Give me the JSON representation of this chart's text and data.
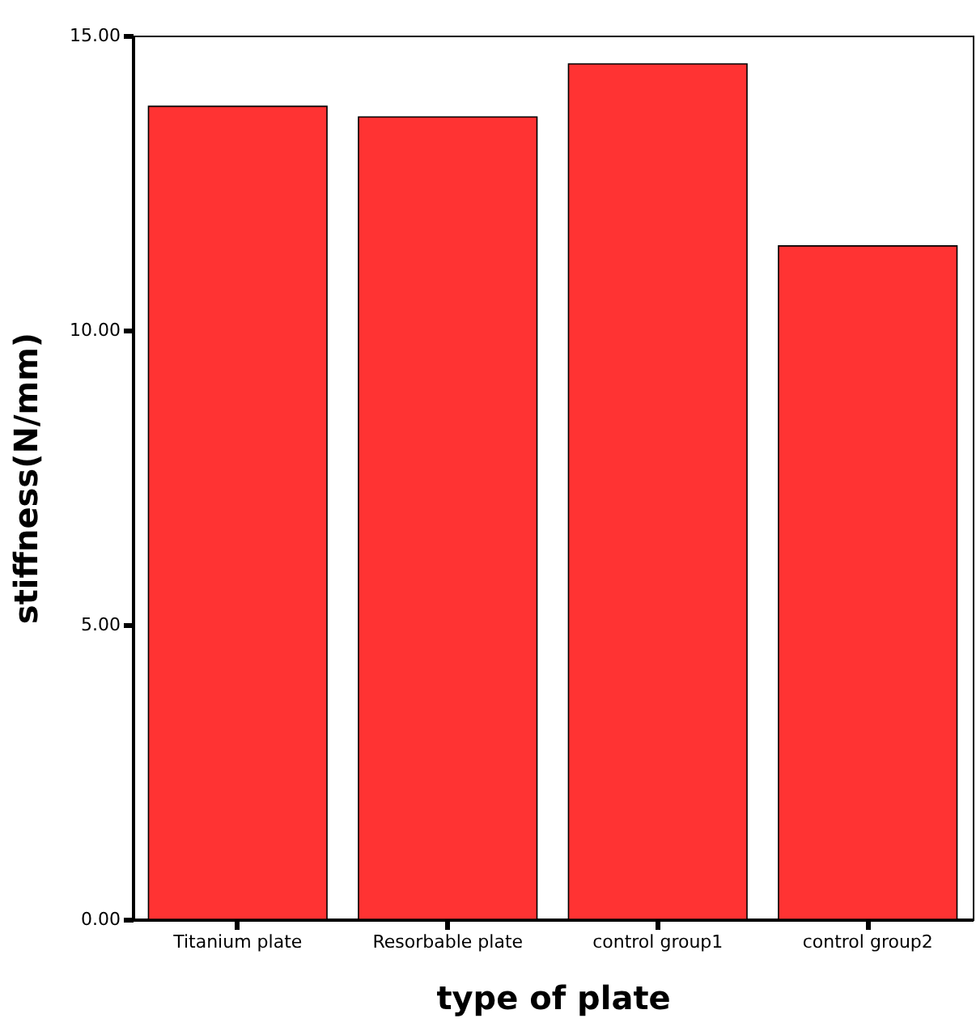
{
  "chart_data": {
    "type": "bar",
    "xlabel": "type of plate",
    "ylabel": "stiffness(N/mm)",
    "categories": [
      "Titanium plate",
      "Resorbable plate",
      "control group1",
      "control group2"
    ],
    "values": [
      13.8,
      13.62,
      14.52,
      11.43
    ],
    "color": "#ff3333",
    "ylim": [
      0,
      15
    ],
    "yticks": [
      {
        "value": 0,
        "label": "0.00"
      },
      {
        "value": 5,
        "label": "5.00"
      },
      {
        "value": 10,
        "label": "10.00"
      },
      {
        "value": 15,
        "label": "15.00"
      }
    ],
    "grid": false
  }
}
